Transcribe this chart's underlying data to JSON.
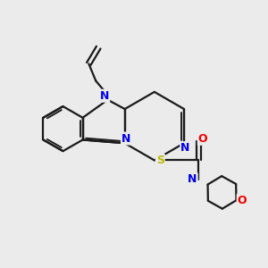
{
  "bg_color": "#ebebeb",
  "bond_color": "#1a1a1a",
  "bond_width": 1.6,
  "atom_colors": {
    "N": "#0000ee",
    "O": "#ee0000",
    "S": "#bbbb00",
    "C": "#1a1a1a"
  },
  "figsize": [
    3.0,
    3.0
  ],
  "dpi": 100
}
